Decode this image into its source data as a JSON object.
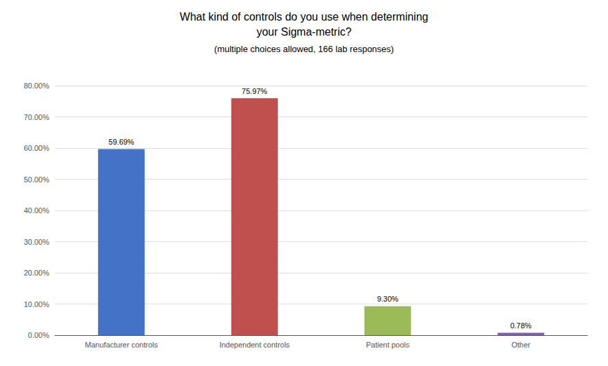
{
  "chart_data": {
    "type": "bar",
    "title": "What kind of controls do you use when determining\nyour Sigma-metric?",
    "subtitle": "(multiple choices allowed, 166 lab responses)",
    "categories": [
      "Manufacturer controls",
      "Independent controls",
      "Patient pools",
      "Other"
    ],
    "values": [
      59.69,
      75.97,
      9.3,
      0.78
    ],
    "value_labels": [
      "59.69%",
      "75.97%",
      "9.30%",
      "0.78%"
    ],
    "data_labels": true,
    "colors": [
      "#4472C4",
      "#C0504D",
      "#9BBB59",
      "#7F5FA8"
    ],
    "ylim": [
      0,
      80
    ],
    "yticks": [
      {
        "value": 0,
        "label": "0.00%"
      },
      {
        "value": 10,
        "label": "10.00%"
      },
      {
        "value": 20,
        "label": "20.00%"
      },
      {
        "value": 30,
        "label": "30.00%"
      },
      {
        "value": 40,
        "label": "40.00%"
      },
      {
        "value": 50,
        "label": "50.00%"
      },
      {
        "value": 60,
        "label": "60.00%"
      },
      {
        "value": 70,
        "label": "70.00%"
      },
      {
        "value": 80,
        "label": "80.00%"
      }
    ],
    "grid": true
  }
}
